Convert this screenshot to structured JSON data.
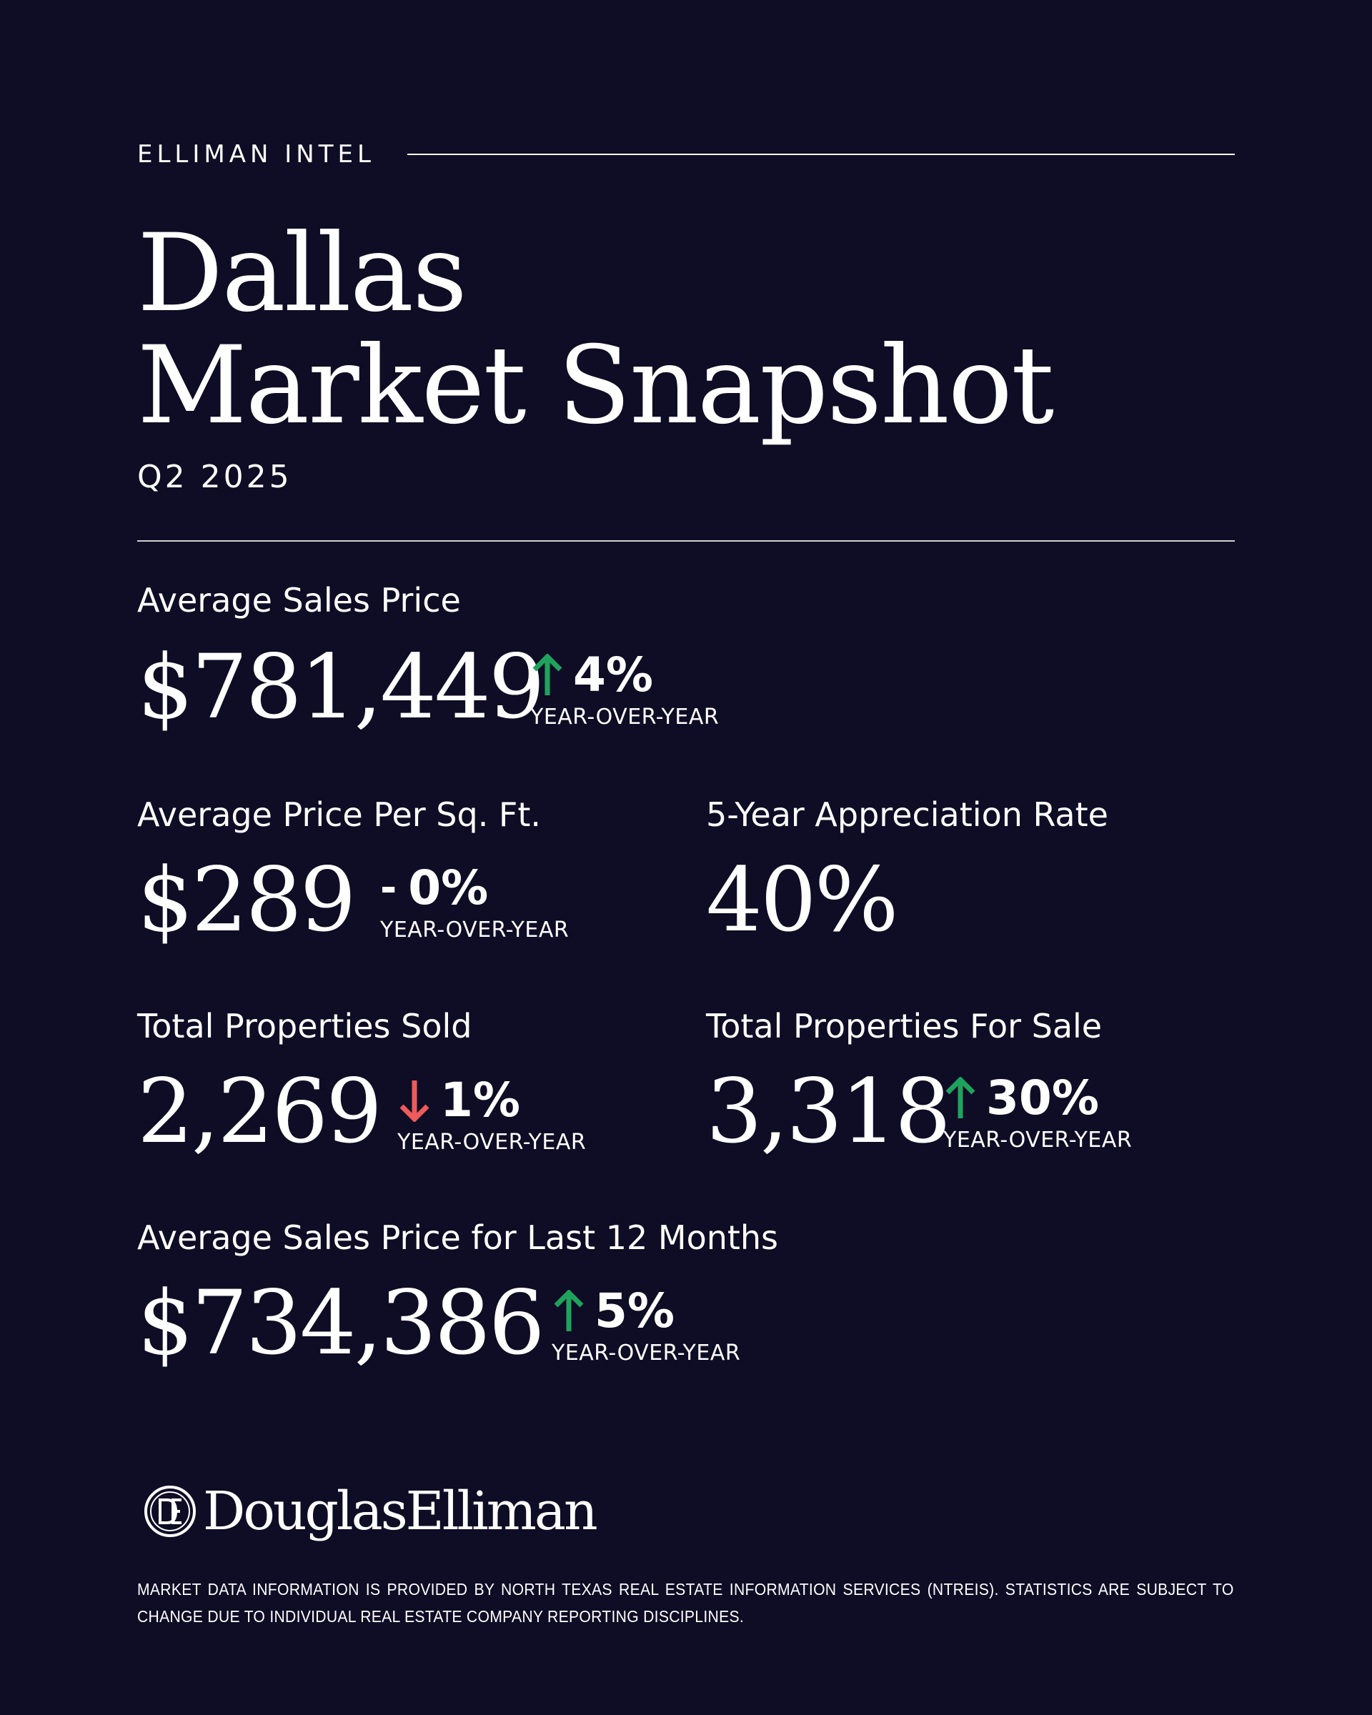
{
  "header": {
    "eyebrow": "ELLIMAN INTEL",
    "title_line1": "Dallas",
    "title_line2": "Market Snapshot",
    "quarter": "Q2 2025"
  },
  "colors": {
    "background": "#0f0c25",
    "text": "#ffffff",
    "up": "#1fa35c",
    "down": "#ef5b5b"
  },
  "metrics": {
    "avg_sales_price": {
      "label": "Average Sales Price",
      "value": "$781,449",
      "change": "4%",
      "direction": "up",
      "change_note": "YEAR-OVER-YEAR"
    },
    "avg_price_per_sqft": {
      "label": "Average Price Per Sq. Ft.",
      "value": "$289",
      "change_prefix": "-",
      "change": "0%",
      "direction": "flat",
      "change_note": "YEAR-OVER-YEAR"
    },
    "appreciation_rate": {
      "label": "5-Year Appreciation Rate",
      "value": "40%"
    },
    "properties_sold": {
      "label": "Total Properties Sold",
      "value": "2,269",
      "change": "1%",
      "direction": "down",
      "change_note": "YEAR-OVER-YEAR"
    },
    "properties_for_sale": {
      "label": "Total Properties For Sale",
      "value": "3,318",
      "change": "30%",
      "direction": "up",
      "change_note": "YEAR-OVER-YEAR"
    },
    "avg_sales_price_12mo": {
      "label": "Average Sales Price for Last 12 Months",
      "value": "$734,386",
      "change": "5%",
      "direction": "up",
      "change_note": "YEAR-OVER-YEAR"
    }
  },
  "brand": {
    "logo_text": "DouglasElliman",
    "logo_mark_icon": "de-monogram-icon"
  },
  "footer": {
    "disclaimer": "Market data information is provided by North Texas Real Estate Information Services (NTREIS). Statistics are subject to change due to individual real estate company reporting disciplines."
  }
}
